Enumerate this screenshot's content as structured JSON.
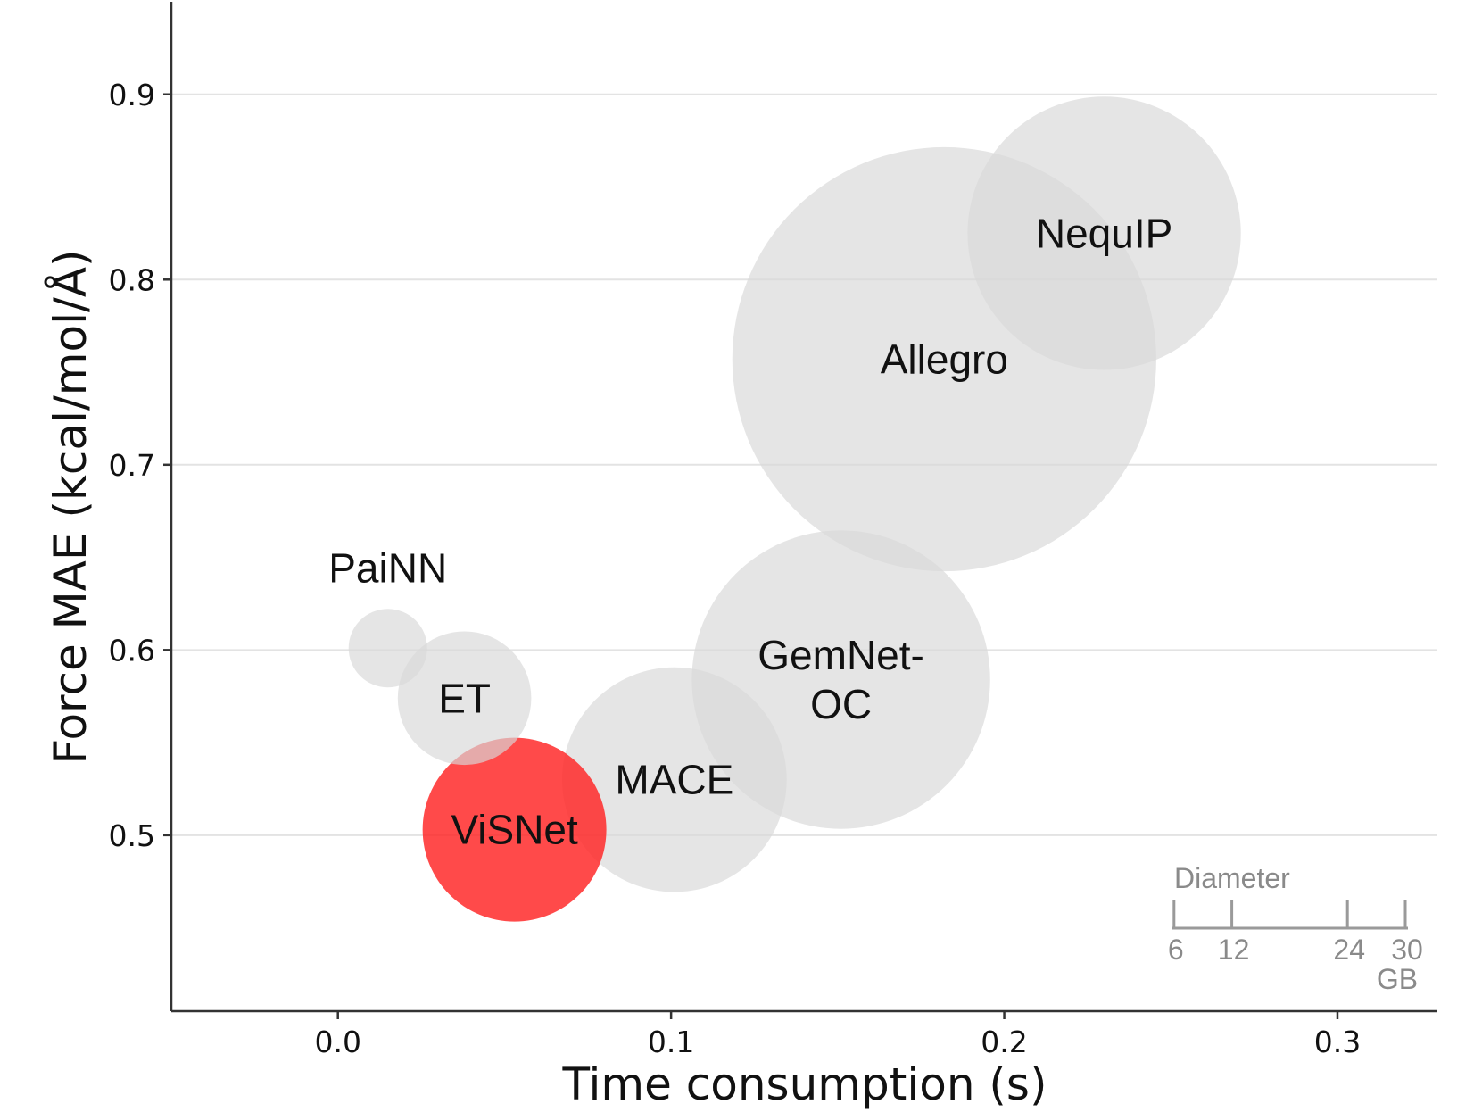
{
  "chart_data": {
    "type": "bubble",
    "title": "",
    "xlabel": "Time consumption (s)",
    "ylabel": "Force MAE (kcal/mol/Å)",
    "xlim": [
      -0.05,
      0.33
    ],
    "ylim": [
      0.405,
      0.95
    ],
    "xticks": [
      0.0,
      0.1,
      0.2,
      0.3
    ],
    "xtick_labels": [
      "0.0",
      "0.1",
      "0.2",
      "0.3"
    ],
    "yticks": [
      0.5,
      0.6,
      0.7,
      0.8,
      0.9
    ],
    "ytick_labels": [
      "0.5",
      "0.6",
      "0.7",
      "0.8",
      "0.9"
    ],
    "grid": "horizontal",
    "size_encoding": "diameter (GB)",
    "points": [
      {
        "name": "PaiNN",
        "label_lines": [
          "PaiNN"
        ],
        "x": 0.015,
        "y": 0.601,
        "size_gb": 5.0,
        "color": "#d9d9d9",
        "opacity": 0.68
      },
      {
        "name": "ET",
        "label_lines": [
          "ET"
        ],
        "x": 0.038,
        "y": 0.574,
        "size_gb": 8.5,
        "color": "#d9d9d9",
        "opacity": 0.68
      },
      {
        "name": "ViSNet",
        "label_lines": [
          "ViSNet"
        ],
        "x": 0.053,
        "y": 0.503,
        "size_gb": 11.7,
        "color": "#ff2222",
        "opacity": 0.82
      },
      {
        "name": "MACE",
        "label_lines": [
          "MACE"
        ],
        "x": 0.101,
        "y": 0.53,
        "size_gb": 14.3,
        "color": "#d9d9d9",
        "opacity": 0.68
      },
      {
        "name": "GemNet-OC",
        "label_lines": [
          "GemNet-",
          "OC"
        ],
        "x": 0.151,
        "y": 0.584,
        "size_gb": 19.0,
        "color": "#d9d9d9",
        "opacity": 0.68
      },
      {
        "name": "Allegro",
        "label_lines": [
          "Allegro"
        ],
        "x": 0.182,
        "y": 0.757,
        "size_gb": 27.0,
        "color": "#d9d9d9",
        "opacity": 0.68
      },
      {
        "name": "NequIP",
        "label_lines": [
          "NequIP"
        ],
        "x": 0.23,
        "y": 0.825,
        "size_gb": 17.4,
        "color": "#d9d9d9",
        "opacity": 0.68
      }
    ],
    "legend": {
      "title": "Diameter",
      "values": [
        6,
        12,
        24,
        30
      ],
      "value_labels": [
        "6",
        "12",
        "24",
        "30"
      ],
      "unit": "GB",
      "placement": "bottom-right"
    }
  }
}
